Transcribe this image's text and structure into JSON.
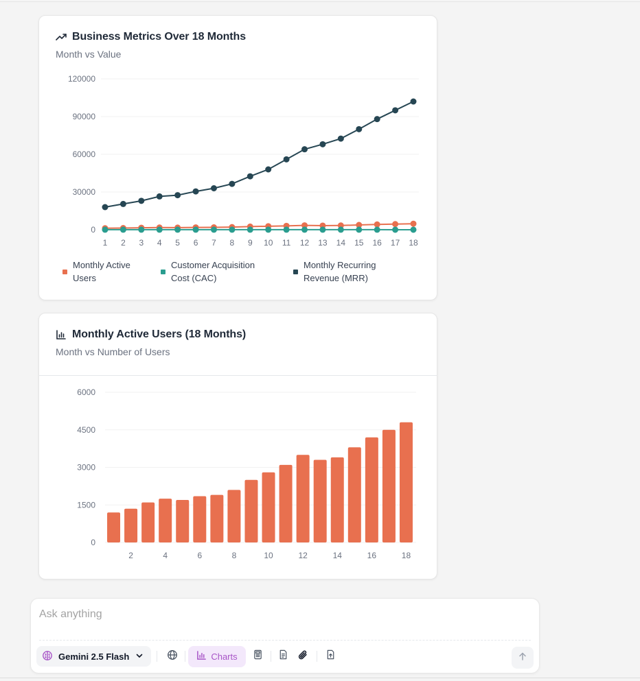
{
  "cards": [
    {
      "title": "Business Metrics Over 18 Months",
      "subtitle": "Month vs Value",
      "icon": "trending-up-icon"
    },
    {
      "title": "Monthly Active Users (18 Months)",
      "subtitle": "Month vs Number of Users",
      "icon": "bar-chart-icon"
    }
  ],
  "chart_data": [
    {
      "type": "line",
      "title": "Business Metrics Over 18 Months",
      "subtitle": "Month vs Value",
      "x": [
        1,
        2,
        3,
        4,
        5,
        6,
        7,
        8,
        9,
        10,
        11,
        12,
        13,
        14,
        15,
        16,
        17,
        18
      ],
      "ylim": [
        0,
        120000
      ],
      "yticks": [
        0,
        30000,
        60000,
        90000,
        120000
      ],
      "grid": true,
      "legend_position": "bottom",
      "series": [
        {
          "name": "Monthly Active Users",
          "color": "#e8704f",
          "values": [
            1200,
            1350,
            1600,
            1750,
            1700,
            1850,
            1900,
            2100,
            2500,
            2800,
            3100,
            3500,
            3300,
            3400,
            3800,
            4200,
            4500,
            4800
          ]
        },
        {
          "name": "Customer Acquisition Cost (CAC)",
          "color": "#2a9d8f",
          "values": [
            50,
            48,
            47,
            45,
            46,
            44,
            43,
            42,
            40,
            39,
            38,
            37,
            38,
            37,
            36,
            35,
            34,
            33
          ]
        },
        {
          "name": "Monthly Recurring Revenue (MRR)",
          "color": "#264653",
          "values": [
            18000,
            20500,
            23000,
            26500,
            27500,
            30500,
            33000,
            36500,
            42500,
            48000,
            56000,
            64000,
            68000,
            72500,
            80000,
            88000,
            95000,
            102000
          ]
        }
      ]
    },
    {
      "type": "bar",
      "title": "Monthly Active Users (18 Months)",
      "subtitle": "Month vs Number of Users",
      "categories": [
        1,
        2,
        3,
        4,
        5,
        6,
        7,
        8,
        9,
        10,
        11,
        12,
        13,
        14,
        15,
        16,
        17,
        18
      ],
      "xtick_labels": [
        "",
        "2",
        "",
        "4",
        "",
        "6",
        "",
        "8",
        "",
        "10",
        "",
        "12",
        "",
        "14",
        "",
        "16",
        "",
        "18"
      ],
      "ylim": [
        0,
        6000
      ],
      "yticks": [
        0,
        1500,
        3000,
        4500,
        6000
      ],
      "grid": true,
      "color": "#e8704f",
      "series": [
        {
          "values": [
            1200,
            1350,
            1600,
            1750,
            1700,
            1850,
            1900,
            2100,
            2500,
            2800,
            3100,
            3500,
            3300,
            3400,
            3800,
            4200,
            4500,
            4800
          ]
        }
      ]
    }
  ],
  "composer": {
    "placeholder": "Ask anything",
    "model_label": "Gemini 2.5 Flash",
    "charts_label": "Charts"
  },
  "colors": {
    "accent_purple": "#a855c7",
    "charts_bg": "#f3e8fb"
  }
}
